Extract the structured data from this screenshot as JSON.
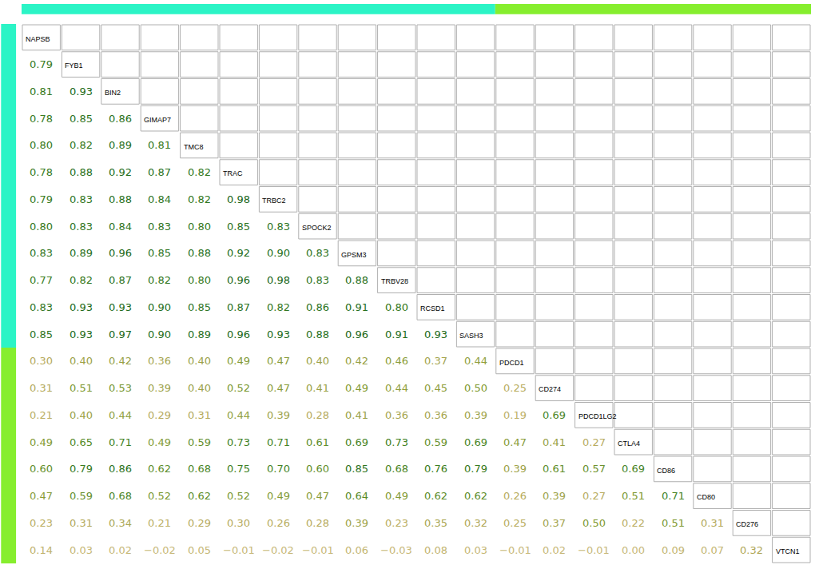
{
  "chart_data": {
    "type": "correlation_matrix",
    "variables": [
      "NAPSB",
      "FYB1",
      "BIN2",
      "GIMAP7",
      "TMC8",
      "TRAC",
      "TRBC2",
      "SPOCK2",
      "GPSM3",
      "TRBV28",
      "RCSD1",
      "SASH3",
      "PDCD1",
      "CD274",
      "PDCD1LG2",
      "CTLA4",
      "CD86",
      "CD80",
      "CD276",
      "VTCN1"
    ],
    "groups": [
      {
        "color": "#2bf4c6",
        "members": [
          "NAPSB",
          "FYB1",
          "BIN2",
          "GIMAP7",
          "TMC8",
          "TRAC",
          "TRBC2",
          "SPOCK2",
          "GPSM3",
          "TRBV28",
          "RCSD1",
          "SASH3"
        ]
      },
      {
        "color": "#86ee2e",
        "members": [
          "PDCD1",
          "CD274",
          "PDCD1LG2",
          "CTLA4",
          "CD86",
          "CD80",
          "CD276",
          "VTCN1"
        ]
      }
    ],
    "values": [
      [],
      [
        0.79
      ],
      [
        0.81,
        0.93
      ],
      [
        0.78,
        0.85,
        0.86
      ],
      [
        0.8,
        0.82,
        0.89,
        0.81
      ],
      [
        0.78,
        0.88,
        0.92,
        0.87,
        0.82
      ],
      [
        0.79,
        0.83,
        0.88,
        0.84,
        0.82,
        0.98
      ],
      [
        0.8,
        0.83,
        0.84,
        0.83,
        0.8,
        0.85,
        0.83
      ],
      [
        0.83,
        0.89,
        0.96,
        0.85,
        0.88,
        0.92,
        0.9,
        0.83
      ],
      [
        0.77,
        0.82,
        0.87,
        0.82,
        0.8,
        0.96,
        0.98,
        0.83,
        0.88
      ],
      [
        0.83,
        0.93,
        0.93,
        0.9,
        0.85,
        0.87,
        0.82,
        0.86,
        0.91,
        0.8
      ],
      [
        0.85,
        0.93,
        0.97,
        0.9,
        0.89,
        0.96,
        0.93,
        0.88,
        0.96,
        0.91,
        0.93
      ],
      [
        0.3,
        0.4,
        0.42,
        0.36,
        0.4,
        0.49,
        0.47,
        0.4,
        0.42,
        0.46,
        0.37,
        0.44
      ],
      [
        0.31,
        0.51,
        0.53,
        0.39,
        0.4,
        0.52,
        0.47,
        0.41,
        0.49,
        0.44,
        0.45,
        0.5,
        0.25
      ],
      [
        0.21,
        0.4,
        0.44,
        0.29,
        0.31,
        0.44,
        0.39,
        0.28,
        0.41,
        0.36,
        0.36,
        0.39,
        0.19,
        0.69
      ],
      [
        0.49,
        0.65,
        0.71,
        0.49,
        0.59,
        0.73,
        0.71,
        0.61,
        0.69,
        0.73,
        0.59,
        0.69,
        0.47,
        0.41,
        0.27
      ],
      [
        0.6,
        0.79,
        0.86,
        0.62,
        0.68,
        0.75,
        0.7,
        0.6,
        0.85,
        0.68,
        0.76,
        0.79,
        0.39,
        0.61,
        0.57,
        0.69
      ],
      [
        0.47,
        0.59,
        0.68,
        0.52,
        0.62,
        0.52,
        0.49,
        0.47,
        0.64,
        0.49,
        0.62,
        0.62,
        0.26,
        0.39,
        0.27,
        0.51,
        0.71
      ],
      [
        0.23,
        0.31,
        0.34,
        0.21,
        0.29,
        0.3,
        0.26,
        0.28,
        0.39,
        0.23,
        0.35,
        0.32,
        0.25,
        0.37,
        0.5,
        0.22,
        0.51,
        0.31
      ],
      [
        0.14,
        0.03,
        0.02,
        -0.02,
        0.05,
        -0.01,
        -0.02,
        -0.01,
        0.06,
        -0.03,
        0.08,
        0.03,
        -0.01,
        0.02,
        -0.01,
        0.0,
        0.09,
        0.07,
        0.32
      ]
    ],
    "value_labels": [
      [],
      [
        "0.79"
      ],
      [
        "0.81",
        "0.93"
      ],
      [
        "0.78",
        "0.85",
        "0.86"
      ],
      [
        "0.80",
        "0.82",
        "0.89",
        "0.81"
      ],
      [
        "0.78",
        "0.88",
        "0.92",
        "0.87",
        "0.82"
      ],
      [
        "0.79",
        "0.83",
        "0.88",
        "0.84",
        "0.82",
        "0.98"
      ],
      [
        "0.80",
        "0.83",
        "0.84",
        "0.83",
        "0.80",
        "0.85",
        "0.83"
      ],
      [
        "0.83",
        "0.89",
        "0.96",
        "0.85",
        "0.88",
        "0.92",
        "0.90",
        "0.83"
      ],
      [
        "0.77",
        "0.82",
        "0.87",
        "0.82",
        "0.80",
        "0.96",
        "0.98",
        "0.83",
        "0.88"
      ],
      [
        "0.83",
        "0.93",
        "0.93",
        "0.90",
        "0.85",
        "0.87",
        "0.82",
        "0.86",
        "0.91",
        "0.80"
      ],
      [
        "0.85",
        "0.93",
        "0.97",
        "0.90",
        "0.89",
        "0.96",
        "0.93",
        "0.88",
        "0.96",
        "0.91",
        "0.93"
      ],
      [
        "0.30",
        "0.40",
        "0.42",
        "0.36",
        "0.40",
        "0.49",
        "0.47",
        "0.40",
        "0.42",
        "0.46",
        "0.37",
        "0.44"
      ],
      [
        "0.31",
        "0.51",
        "0.53",
        "0.39",
        "0.40",
        "0.52",
        "0.47",
        "0.41",
        "0.49",
        "0.44",
        "0.45",
        "0.50",
        "0.25"
      ],
      [
        "0.21",
        "0.40",
        "0.44",
        "0.29",
        "0.31",
        "0.44",
        "0.39",
        "0.28",
        "0.41",
        "0.36",
        "0.36",
        "0.39",
        "0.19",
        "0.69"
      ],
      [
        "0.49",
        "0.65",
        "0.71",
        "0.49",
        "0.59",
        "0.73",
        "0.71",
        "0.61",
        "0.69",
        "0.73",
        "0.59",
        "0.69",
        "0.47",
        "0.41",
        "0.27"
      ],
      [
        "0.60",
        "0.79",
        "0.86",
        "0.62",
        "0.68",
        "0.75",
        "0.70",
        "0.60",
        "0.85",
        "0.68",
        "0.76",
        "0.79",
        "0.39",
        "0.61",
        "0.57",
        "0.69"
      ],
      [
        "0.47",
        "0.59",
        "0.68",
        "0.52",
        "0.62",
        "0.52",
        "0.49",
        "0.47",
        "0.64",
        "0.49",
        "0.62",
        "0.62",
        "0.26",
        "0.39",
        "0.27",
        "0.51",
        "0.71"
      ],
      [
        "0.23",
        "0.31",
        "0.34",
        "0.21",
        "0.29",
        "0.30",
        "0.26",
        "0.28",
        "0.39",
        "0.23",
        "0.35",
        "0.32",
        "0.25",
        "0.37",
        "0.50",
        "0.22",
        "0.51",
        "0.31"
      ],
      [
        "0.14",
        "0.03",
        "0.02",
        "−0.02",
        "0.05",
        "−0.01",
        "−0.02",
        "−0.01",
        "0.06",
        "−0.03",
        "0.08",
        "0.03",
        "−0.01",
        "0.02",
        "−0.01",
        "0.00",
        "0.09",
        "0.07",
        "0.32"
      ]
    ],
    "tick_labels": false
  }
}
